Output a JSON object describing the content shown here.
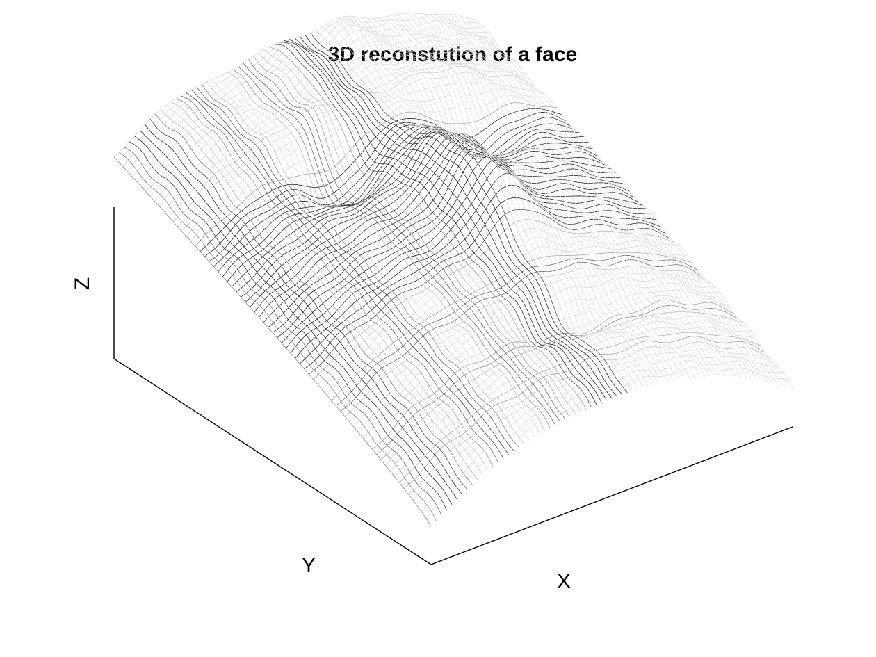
{
  "chart_data": {
    "type": "surface",
    "render": "wireframe-mesh",
    "colormap": "gray",
    "title": "3D reconstution of a face",
    "xlabel": "X",
    "ylabel": "Y",
    "zlabel": "Z",
    "tick_labels": [],
    "grid": false,
    "legend": "none"
  }
}
